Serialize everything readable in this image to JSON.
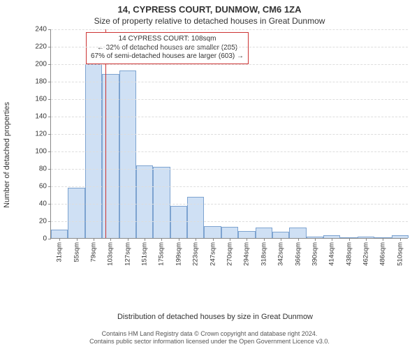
{
  "title": "14, CYPRESS COURT, DUNMOW, CM6 1ZA",
  "subtitle": "Size of property relative to detached houses in Great Dunmow",
  "y_axis": {
    "label": "Number of detached properties",
    "min": 0,
    "max": 240,
    "tick_step": 20,
    "ticks": [
      0,
      20,
      40,
      60,
      80,
      100,
      120,
      140,
      160,
      180,
      200,
      220,
      240
    ],
    "label_fontsize": 11,
    "tick_fontsize": 10
  },
  "x_axis": {
    "title": "Distribution of detached houses by size in Great Dunmow",
    "labels": [
      "31sqm",
      "55sqm",
      "79sqm",
      "103sqm",
      "127sqm",
      "151sqm",
      "175sqm",
      "199sqm",
      "223sqm",
      "247sqm",
      "270sqm",
      "294sqm",
      "318sqm",
      "342sqm",
      "366sqm",
      "390sqm",
      "414sqm",
      "438sqm",
      "462sqm",
      "486sqm",
      "510sqm"
    ],
    "label_fontsize": 9.5,
    "title_fontsize": 11
  },
  "chart": {
    "type": "histogram",
    "values": [
      10,
      58,
      199,
      188,
      192,
      83,
      82,
      37,
      47,
      14,
      13,
      8,
      12,
      7,
      12,
      2,
      3,
      0,
      2,
      0,
      3
    ],
    "bar_fill": "#cfe0f4",
    "bar_stroke": "#7da3d0",
    "bar_width_ratio": 1.0,
    "background": "#ffffff",
    "grid_color": "#dddddd",
    "grid_dash": true
  },
  "marker": {
    "value_sqm": 108,
    "color": "#cc3333",
    "bin_start": 31,
    "bin_end": 534,
    "bin_count": 21
  },
  "annotation": {
    "lines": [
      "14 CYPRESS COURT: 108sqm",
      "← 32% of detached houses are smaller (285)",
      "67% of semi-detached houses are larger (603) →"
    ],
    "border_color": "#cc3333",
    "background": "#ffffff",
    "fontsize": 10
  },
  "footer": {
    "line1": "Contains HM Land Registry data © Crown copyright and database right 2024.",
    "line2": "Contains public sector information licensed under the Open Government Licence v3.0.",
    "fontsize": 9,
    "color": "#555555"
  }
}
